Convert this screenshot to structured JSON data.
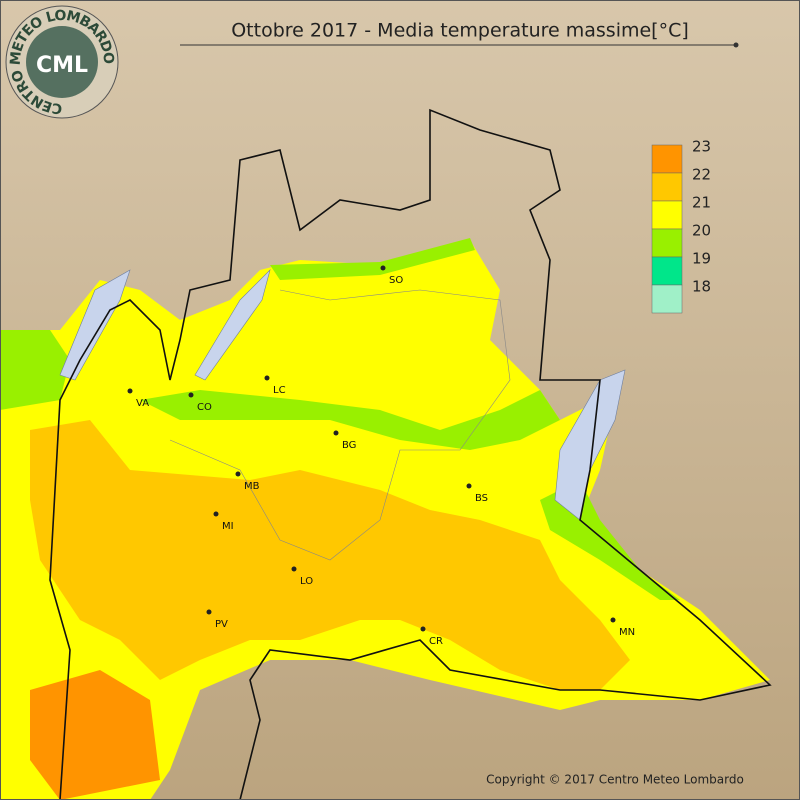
{
  "header": {
    "title": "Ottobre 2017 - Media temperature massime[°C]"
  },
  "logo": {
    "abbr": "CML",
    "ring": "CENTRO METEO LOMBARDO"
  },
  "legend": {
    "items": [
      {
        "value": 23,
        "color": "#ff9400"
      },
      {
        "value": 22,
        "color": "#ffc800"
      },
      {
        "value": 21,
        "color": "#ffff00"
      },
      {
        "value": 20,
        "color": "#99f000"
      },
      {
        "value": 19,
        "color": "#00e68a"
      },
      {
        "value": 18,
        "color": "#a0f0c8"
      }
    ]
  },
  "cities": [
    "VA",
    "CO",
    "LC",
    "SO",
    "BG",
    "MB",
    "MI",
    "LO",
    "PV",
    "BS",
    "CR",
    "MN"
  ],
  "footer": {
    "copyright": "Copyright © 2017 Centro Meteo Lombardo"
  }
}
